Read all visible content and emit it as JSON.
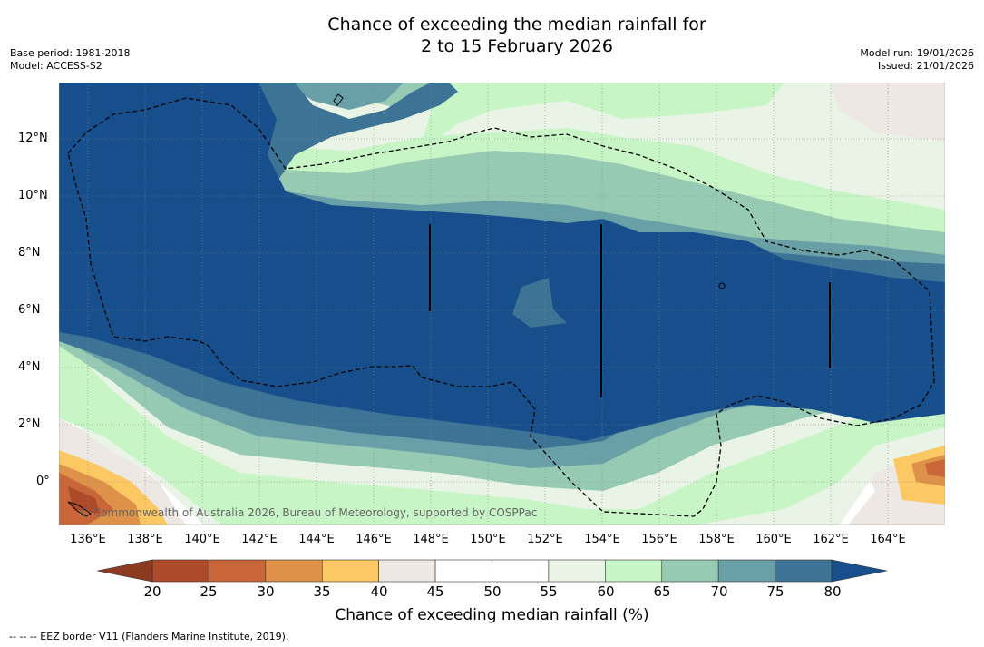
{
  "title": {
    "line1": "Chance of exceeding the median rainfall for",
    "line2": "2 to 15 February 2026"
  },
  "meta_left": {
    "base_period": "Base period: 1981-2018",
    "model": "Model: ACCESS-S2"
  },
  "meta_right": {
    "model_run": "Model run: 19/01/2026",
    "issued": "Issued: 21/01/2026"
  },
  "map": {
    "lon_range": [
      135,
      166
    ],
    "lat_range": [
      -1.5,
      14
    ],
    "lat_ticks": [
      {
        "value": 12,
        "label": "12°N"
      },
      {
        "value": 10,
        "label": "10°N"
      },
      {
        "value": 8,
        "label": "8°N"
      },
      {
        "value": 6,
        "label": "6°N"
      },
      {
        "value": 4,
        "label": "4°N"
      },
      {
        "value": 2,
        "label": "2°N"
      },
      {
        "value": 0,
        "label": "0°"
      }
    ],
    "lon_ticks": [
      {
        "value": 136,
        "label": "136°E"
      },
      {
        "value": 138,
        "label": "138°E"
      },
      {
        "value": 140,
        "label": "140°E"
      },
      {
        "value": 142,
        "label": "142°E"
      },
      {
        "value": 144,
        "label": "144°E"
      },
      {
        "value": 146,
        "label": "146°E"
      },
      {
        "value": 148,
        "label": "148°E"
      },
      {
        "value": 150,
        "label": "150°E"
      },
      {
        "value": 152,
        "label": "152°E"
      },
      {
        "value": 154,
        "label": "154°E"
      },
      {
        "value": 156,
        "label": "156°E"
      },
      {
        "value": 158,
        "label": "158°E"
      },
      {
        "value": 160,
        "label": "160°E"
      },
      {
        "value": 162,
        "label": "162°E"
      },
      {
        "value": 164,
        "label": "164°E"
      }
    ],
    "copyright": "© Commonwealth of Australia 2026, Bureau of Meteorology, supported by COSPPac"
  },
  "colorbar": {
    "label": "Chance of exceeding median rainfall (%)",
    "ticks": [
      "20",
      "25",
      "30",
      "35",
      "40",
      "45",
      "50",
      "55",
      "60",
      "65",
      "70",
      "75",
      "80"
    ],
    "below_color": "#8c3a20",
    "above_color": "#164f8c",
    "colors": [
      "#ac4a29",
      "#c8663a",
      "#de9148",
      "#fcc864",
      "#ede8e3",
      "#ffffff",
      "#ffffff",
      "#e9f4e6",
      "#c8f5c5",
      "#96cab3",
      "#699fa6",
      "#3d7395"
    ]
  },
  "footer": "--  --  -- EEZ border V11 (Flanders Marine Institute, 2019)."
}
